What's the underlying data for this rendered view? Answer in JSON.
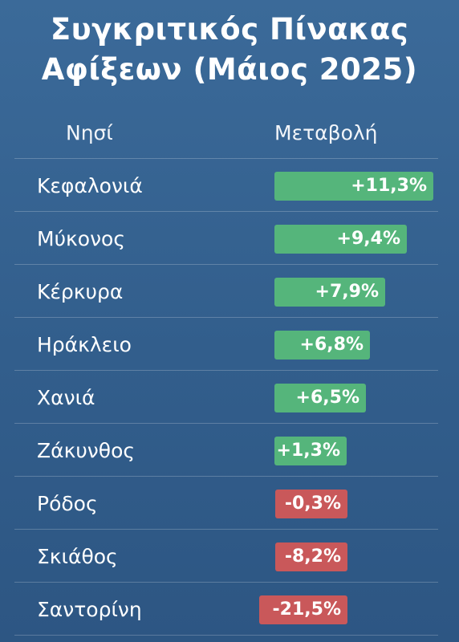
{
  "title_lines": [
    "Συγκριτικός Πίνακας",
    "Αφίξεων (Μάιος 2025)"
  ],
  "headers": {
    "island": "Νησί",
    "change": "Μεταβολή"
  },
  "colors": {
    "positive": "#55b57b",
    "negative": "#c9585a",
    "background": "#335f8d"
  },
  "chart_data": {
    "type": "bar",
    "title": "Συγκριτικός Πίνακας Αφίξεων (Μάιος 2025)",
    "categories": [
      "Κεφαλονιά",
      "Μύκονος",
      "Κέρκυρα",
      "Ηράκλειο",
      "Χανιά",
      "Ζάκυνθος",
      "Ρόδος",
      "Σκιάθος",
      "Σαντορίνη"
    ],
    "values": [
      11.3,
      9.4,
      7.9,
      6.8,
      6.5,
      1.3,
      -0.3,
      -8.2,
      -21.5
    ],
    "labels": [
      "+11,3%",
      "+9,4%",
      "+7,9%",
      "+6,8%",
      "+6,5%",
      "+1,3%",
      "-0,3%",
      "-8,2%",
      "-21,5%"
    ],
    "unit": "%"
  }
}
